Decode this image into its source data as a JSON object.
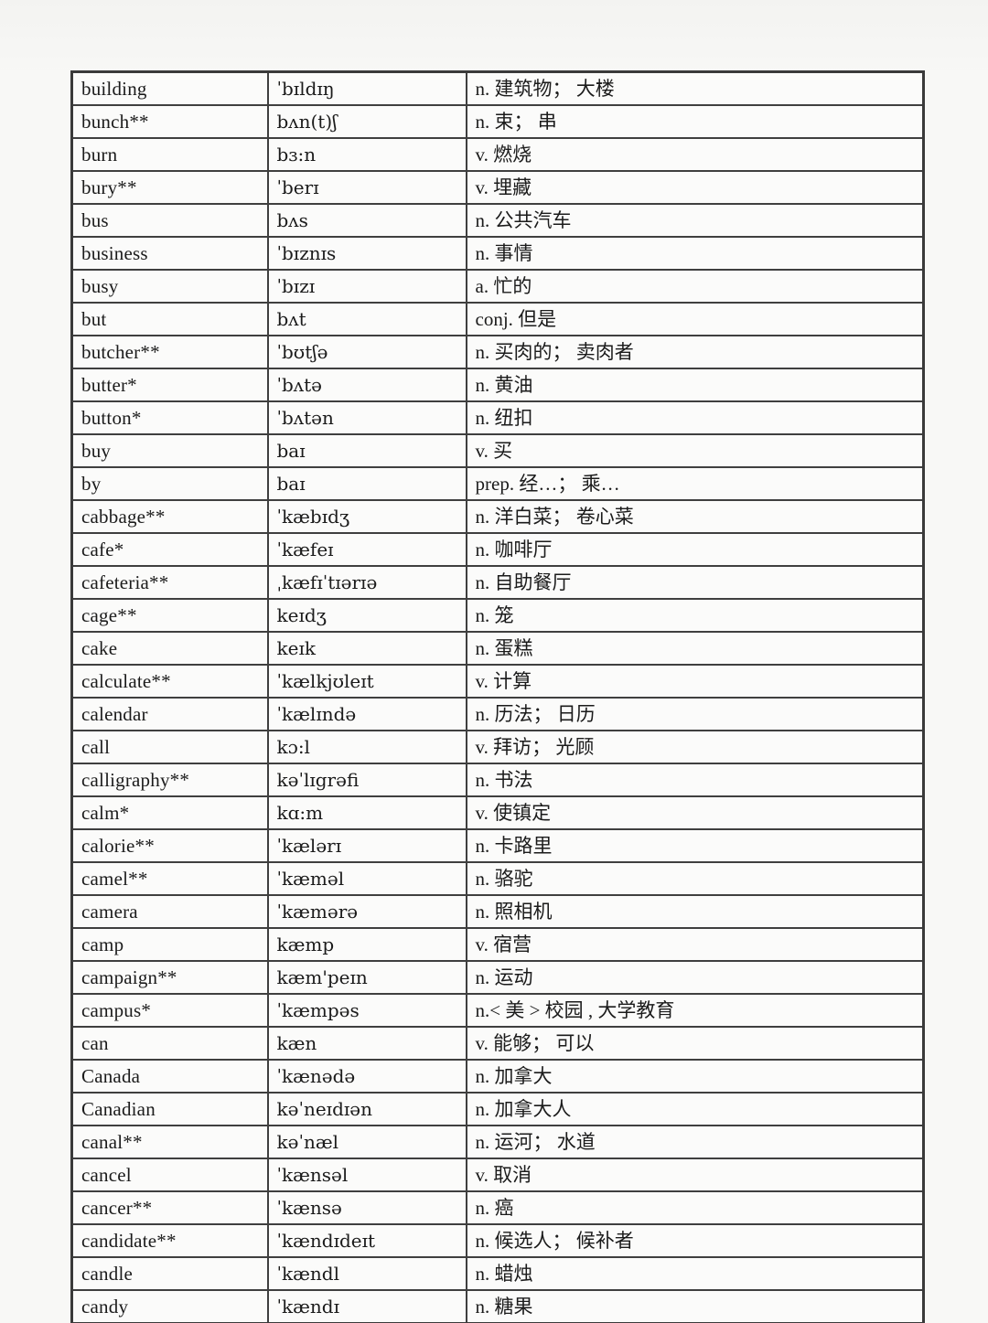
{
  "page": {
    "background_color": "#f8f8f6",
    "cell_background": "#fbfbfa",
    "border_color": "#3f3f3f",
    "text_color": "#1b1b1b"
  },
  "table": {
    "rows": [
      {
        "word": "building",
        "ipa": "ˈbɪldɪŋ",
        "meaning": "n. 建筑物； 大楼"
      },
      {
        "word": "bunch**",
        "ipa": "bʌn(t)ʃ",
        "meaning": "n. 束； 串"
      },
      {
        "word": "burn",
        "ipa": "bɜ:n",
        "meaning": "v. 燃烧"
      },
      {
        "word": "bury**",
        "ipa": "ˈberɪ",
        "meaning": "v. 埋藏"
      },
      {
        "word": "bus",
        "ipa": "bʌs",
        "meaning": "n. 公共汽车"
      },
      {
        "word": "business",
        "ipa": "ˈbɪznɪs",
        "meaning": "n. 事情"
      },
      {
        "word": "busy",
        "ipa": "ˈbɪzɪ",
        "meaning": "a. 忙的"
      },
      {
        "word": "but",
        "ipa": "bʌt",
        "meaning": "conj. 但是"
      },
      {
        "word": "butcher**",
        "ipa": "ˈbʊtʃə",
        "meaning": "n. 买肉的； 卖肉者"
      },
      {
        "word": "butter*",
        "ipa": "ˈbʌtə",
        "meaning": "n. 黄油"
      },
      {
        "word": "button*",
        "ipa": "ˈbʌtən",
        "meaning": "n. 纽扣"
      },
      {
        "word": "buy",
        "ipa": "baɪ",
        "meaning": "v. 买"
      },
      {
        "word": "by",
        "ipa": "baɪ",
        "meaning": "prep. 经…； 乘…"
      },
      {
        "word": "cabbage**",
        "ipa": "ˈkæbɪdʒ",
        "meaning": "n. 洋白菜； 卷心菜"
      },
      {
        "word": "cafe*",
        "ipa": "ˈkæfeɪ",
        "meaning": "n. 咖啡厅"
      },
      {
        "word": "cafeteria**",
        "ipa": "ˌkæfɪˈtɪərɪə",
        "meaning": "n. 自助餐厅"
      },
      {
        "word": "cage**",
        "ipa": "keɪdʒ",
        "meaning": "n. 笼"
      },
      {
        "word": "cake",
        "ipa": "keɪk",
        "meaning": "n. 蛋糕"
      },
      {
        "word": "calculate**",
        "ipa": "ˈkælkjʊleɪt",
        "meaning": "v. 计算"
      },
      {
        "word": "calendar",
        "ipa": "ˈkælɪndə",
        "meaning": "n. 历法； 日历"
      },
      {
        "word": "call",
        "ipa": "kɔ:l",
        "meaning": "v. 拜访； 光顾"
      },
      {
        "word": "calligraphy**",
        "ipa": "kəˈlɪgrəfi",
        "meaning": "n. 书法"
      },
      {
        "word": "calm*",
        "ipa": "kɑ:m",
        "meaning": "v. 使镇定"
      },
      {
        "word": "calorie**",
        "ipa": "ˈkælərɪ",
        "meaning": "n. 卡路里"
      },
      {
        "word": "camel**",
        "ipa": "ˈkæməl",
        "meaning": "n. 骆驼"
      },
      {
        "word": "camera",
        "ipa": "ˈkæmərə",
        "meaning": "n. 照相机"
      },
      {
        "word": "camp",
        "ipa": "kæmp",
        "meaning": "v. 宿营"
      },
      {
        "word": "campaign**",
        "ipa": "kæm'peɪn",
        "meaning": "n. 运动"
      },
      {
        "word": "campus*",
        "ipa": "ˈkæmpəs",
        "meaning": "n.< 美 > 校园 , 大学教育"
      },
      {
        "word": "can",
        "ipa": "kæn",
        "meaning": "v. 能够； 可以"
      },
      {
        "word": "Canada",
        "ipa": "ˈkænədə",
        "meaning": "n. 加拿大"
      },
      {
        "word": "Canadian",
        "ipa": "kəˈneɪdɪən",
        "meaning": "n. 加拿大人"
      },
      {
        "word": "canal**",
        "ipa": "kəˈnæl",
        "meaning": "n. 运河； 水道"
      },
      {
        "word": "cancel",
        "ipa": "ˈkænsəl",
        "meaning": "v. 取消"
      },
      {
        "word": "cancer**",
        "ipa": "ˈkænsə",
        "meaning": "n. 癌"
      },
      {
        "word": "candidate**",
        "ipa": "ˈkændɪdeɪt",
        "meaning": "n. 候选人； 候补者"
      },
      {
        "word": "candle",
        "ipa": "ˈkændl",
        "meaning": "n. 蜡烛"
      },
      {
        "word": "candy",
        "ipa": "ˈkændɪ",
        "meaning": "n. 糖果"
      }
    ]
  }
}
